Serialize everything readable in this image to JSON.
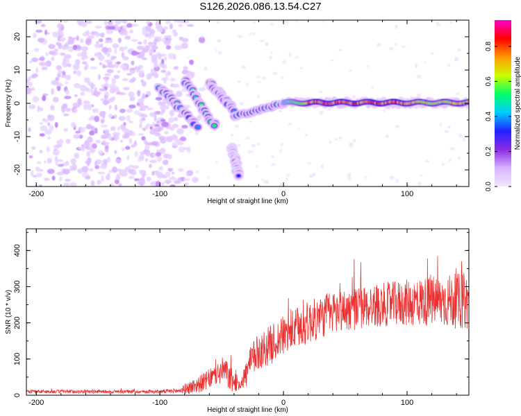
{
  "title": "S126.2026.086.13.54.C27",
  "chart_data": [
    {
      "type": "heatmap",
      "title": "S126.2026.086.13.54.C27",
      "xlabel": "Height of straight line (km)",
      "ylabel": "Frequency (Hz)",
      "xlim": [
        -208,
        150
      ],
      "ylim": [
        -25,
        25
      ],
      "xticks": [
        -200,
        -100,
        0,
        100
      ],
      "yticks": [
        -20,
        -10,
        0,
        10,
        20
      ],
      "colorbar": {
        "label": "Normalized spectral amplitude",
        "range": [
          0.0,
          0.95
        ],
        "ticks": [
          0.0,
          0.2,
          0.4,
          0.6,
          0.8
        ],
        "colormap": [
          "#f0e6ff",
          "#d9b3ff",
          "#8a2be2",
          "#2222ff",
          "#00ccff",
          "#00ff66",
          "#ccff00",
          "#ff9900",
          "#ff0000",
          "#ff00cc"
        ]
      },
      "features": [
        {
          "name": "background_noise",
          "x": [
            -208,
            -80
          ],
          "y": [
            -25,
            25
          ],
          "amplitude": 0.1
        },
        {
          "name": "tone_main",
          "x": [
            0,
            150
          ],
          "frequency": 0.2,
          "amplitude": 0.9
        },
        {
          "name": "tone_onset",
          "x": [
            -40,
            0
          ],
          "frequency_start": -4,
          "frequency_end": 0,
          "amplitude": 0.5
        },
        {
          "name": "chirp_1",
          "x": [
            -100,
            -70
          ],
          "frequency_start": 5,
          "frequency_end": -7,
          "amplitude": 0.45
        },
        {
          "name": "chirp_2",
          "x": [
            -80,
            -55
          ],
          "frequency_start": 7,
          "frequency_end": -7,
          "amplitude": 0.5
        },
        {
          "name": "chirp_3",
          "x": [
            -60,
            -40
          ],
          "frequency_start": 6,
          "frequency_end": -2,
          "amplitude": 0.45
        },
        {
          "name": "chirp_4",
          "x": [
            -42,
            -36
          ],
          "frequency_start": -13,
          "frequency_end": -22,
          "amplitude": 0.3
        }
      ]
    },
    {
      "type": "line",
      "xlabel": "Height of straight line (km)",
      "ylabel": "SNR (10 * v/v)",
      "xlim": [
        -208,
        150
      ],
      "ylim": [
        0,
        460
      ],
      "xticks": [
        -200,
        -100,
        0,
        100
      ],
      "yticks": [
        0,
        100,
        200,
        300,
        400
      ],
      "color": "#e83030",
      "series": [
        {
          "name": "SNR envelope",
          "x": [
            -208,
            -100,
            -85,
            -75,
            -65,
            -55,
            -48,
            -42,
            -35,
            -30,
            -25,
            -20,
            -10,
            0,
            20,
            40,
            60,
            80,
            100,
            120,
            150
          ],
          "y": [
            10,
            10,
            12,
            22,
            35,
            55,
            70,
            40,
            30,
            60,
            100,
            120,
            140,
            165,
            200,
            230,
            240,
            250,
            255,
            260,
            260
          ],
          "noise_amplitude": [
            5,
            5,
            7,
            20,
            25,
            30,
            40,
            35,
            15,
            40,
            50,
            50,
            55,
            55,
            60,
            60,
            60,
            60,
            65,
            70,
            80
          ]
        }
      ]
    }
  ]
}
